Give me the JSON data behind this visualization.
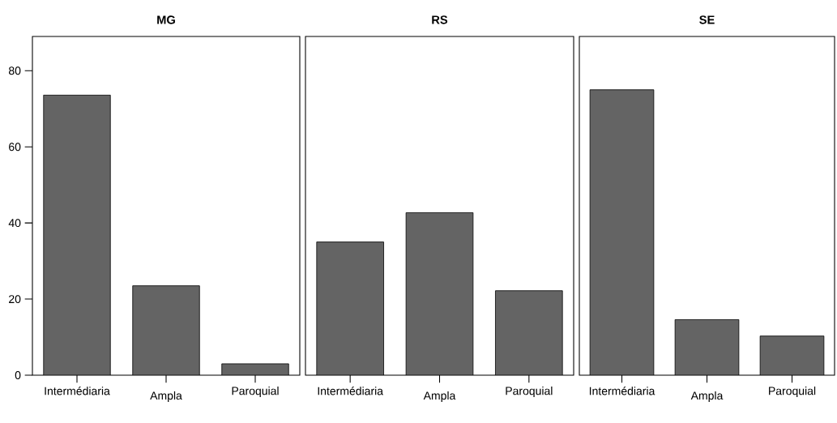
{
  "chart_data": [
    {
      "type": "bar",
      "title": "MG",
      "categories": [
        "Intermédiaria",
        "Ampla",
        "Paroquial"
      ],
      "values": [
        73.6,
        23.5,
        3.0
      ],
      "color": "#646464",
      "ylim": [
        0,
        89
      ],
      "yticks": [
        0,
        20,
        40,
        60,
        80
      ]
    },
    {
      "type": "bar",
      "title": "RS",
      "categories": [
        "Intermédiaria",
        "Ampla",
        "Paroquial"
      ],
      "values": [
        35.0,
        42.7,
        22.2
      ],
      "color": "#646464",
      "ylim": [
        0,
        89
      ],
      "tick_labels": "x"
    },
    {
      "type": "bar",
      "title": "SE",
      "categories": [
        "Intermédiaria",
        "Ampla",
        "Paroquial"
      ],
      "values": [
        75.0,
        14.6,
        10.3
      ],
      "color": "#646464",
      "ylim": [
        0,
        89
      ],
      "tick_labels": "x"
    }
  ]
}
